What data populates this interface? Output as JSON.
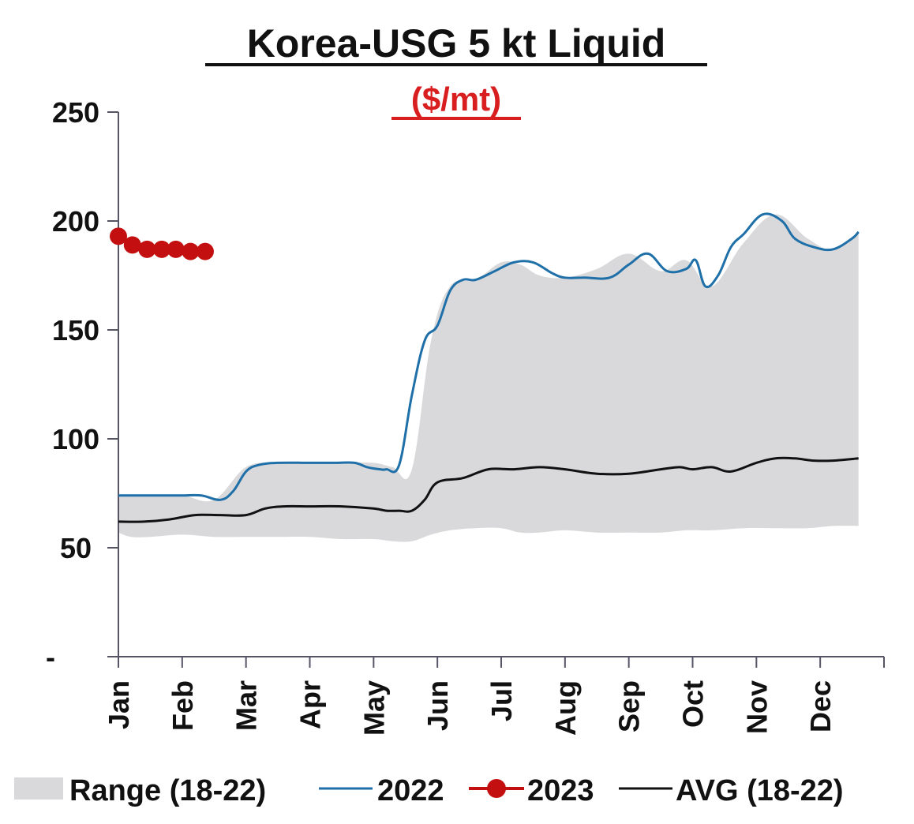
{
  "chart_data": {
    "type": "line",
    "title": "Korea-USG 5 kt Liquid",
    "subtitle": "($/mt)",
    "xlabel": "",
    "ylabel": "",
    "ylim": [
      0,
      250
    ],
    "y_ticks": [
      {
        "value": 0,
        "label": "-"
      },
      {
        "value": 50,
        "label": "50"
      },
      {
        "value": 100,
        "label": "100"
      },
      {
        "value": 150,
        "label": "150"
      },
      {
        "value": 200,
        "label": "200"
      },
      {
        "value": 250,
        "label": "250"
      }
    ],
    "x_domain": [
      0,
      12
    ],
    "months": [
      "Jan",
      "Feb",
      "Mar",
      "Apr",
      "May",
      "Jun",
      "Jul",
      "Aug",
      "Sep",
      "Oct",
      "Nov",
      "Dec"
    ],
    "grid": false,
    "legend_position": "bottom",
    "range": {
      "name": "Range (18-22)",
      "color": "#d9d9db",
      "x": [
        0,
        0.2,
        0.5,
        1,
        1.5,
        2,
        2.5,
        3,
        3.5,
        4,
        4.3,
        4.6,
        4.9,
        5.2,
        5.6,
        6,
        6.3,
        6.6,
        7,
        7.5,
        8,
        8.5,
        8.9,
        9.3,
        9.8,
        10.3,
        10.8,
        11.2,
        11.6
      ],
      "low": [
        57,
        55,
        55,
        56,
        55,
        55,
        55,
        55,
        54,
        54,
        53,
        53,
        56,
        58,
        59,
        59,
        57,
        57,
        58,
        57,
        57,
        57,
        58,
        58,
        59,
        59,
        59,
        60,
        60
      ],
      "high": [
        74,
        74,
        74,
        74,
        72,
        87,
        89,
        89,
        89,
        89,
        87,
        86,
        145,
        170,
        173,
        181,
        180,
        175,
        174,
        178,
        185,
        177,
        182,
        170,
        190,
        203,
        192,
        187,
        195
      ]
    },
    "series": [
      {
        "name": "2022",
        "color": "#1f6fa8",
        "x": [
          0,
          0.3,
          0.6,
          1,
          1.3,
          1.6,
          1.8,
          2,
          2.2,
          2.5,
          3,
          3.4,
          3.7,
          3.9,
          4.1,
          4.2,
          4.4,
          4.6,
          4.8,
          5,
          5.2,
          5.4,
          5.6,
          5.9,
          6.2,
          6.5,
          6.8,
          7,
          7.3,
          7.7,
          8,
          8.3,
          8.6,
          8.9,
          9.05,
          9.2,
          9.4,
          9.6,
          9.8,
          10.1,
          10.4,
          10.6,
          10.9,
          11.2,
          11.5,
          11.6
        ],
        "values": [
          74,
          74,
          74,
          74,
          74,
          72,
          76,
          85,
          88,
          89,
          89,
          89,
          89,
          87,
          86,
          86,
          88,
          120,
          145,
          152,
          168,
          173,
          173,
          177,
          181,
          181,
          176,
          174,
          174,
          174,
          180,
          185,
          177,
          178,
          182,
          170,
          175,
          188,
          194,
          203,
          200,
          192,
          188,
          187,
          192,
          195
        ]
      },
      {
        "name": "2023",
        "color": "#c30f0f",
        "x": [
          0,
          0.22,
          0.45,
          0.68,
          0.9,
          1.13,
          1.36
        ],
        "values": [
          193,
          189,
          187,
          187,
          187,
          186,
          186
        ]
      },
      {
        "name": "AVG (18-22)",
        "color": "#111111",
        "x": [
          0,
          0.4,
          0.8,
          1.2,
          1.6,
          2,
          2.3,
          2.6,
          3,
          3.5,
          4,
          4.2,
          4.4,
          4.6,
          4.8,
          5,
          5.4,
          5.8,
          6.2,
          6.6,
          7,
          7.5,
          8,
          8.5,
          8.8,
          9,
          9.3,
          9.6,
          10,
          10.3,
          10.6,
          10.9,
          11.2,
          11.6
        ],
        "values": [
          62,
          62,
          63,
          65,
          65,
          65,
          68,
          69,
          69,
          69,
          68,
          67,
          67,
          67,
          72,
          80,
          82,
          86,
          86,
          87,
          86,
          84,
          84,
          86,
          87,
          86,
          87,
          85,
          89,
          91,
          91,
          90,
          90,
          91
        ]
      }
    ],
    "legend": [
      {
        "key": "range",
        "label": "Range (18-22)"
      },
      {
        "key": "2022",
        "label": "2022"
      },
      {
        "key": "2023",
        "label": "2023"
      },
      {
        "key": "avg",
        "label": "AVG (18-22)"
      }
    ]
  }
}
